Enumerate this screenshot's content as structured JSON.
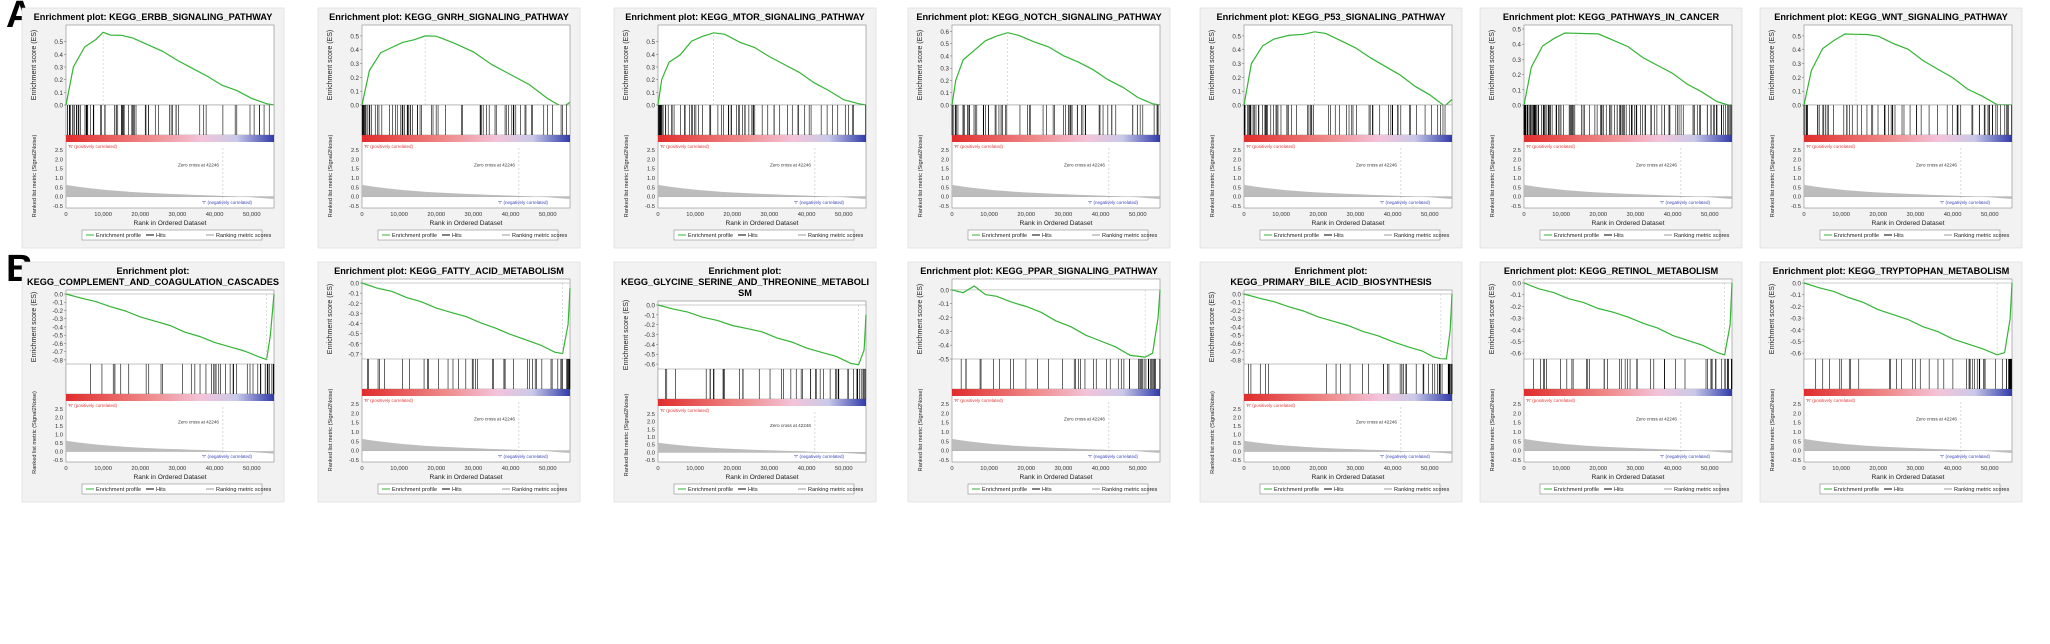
{
  "panel_labels": [
    "A",
    "B"
  ],
  "common": {
    "es_ylabel": "Enrichment score (ES)",
    "metric_ylabel": "Ranked list metric (Signal2Noise)",
    "xlabel": "Rank in Ordered Dataset",
    "pos_label": "'R' (positively correlated)",
    "neg_label": "'T' (negatively correlated)",
    "zero_cross": "Zero cross at 42246",
    "legend": [
      "Enrichment profile",
      "Hits",
      "Ranking metric scores"
    ],
    "x_ticks": [
      "0",
      "10,000",
      "20,000",
      "30,000",
      "40,000",
      "50,000"
    ],
    "metric_ticks": [
      "2.5",
      "2.0",
      "1.5",
      "1.0",
      "0.5",
      "0.0",
      "-0.5"
    ],
    "colors": {
      "es_line": "#33b533",
      "hits": "#000000",
      "metric_fill": "#bdbdbd",
      "pos": "#e23b3b",
      "neg": "#3b46b8"
    }
  },
  "chart_data": [
    {
      "type": "line",
      "title": "Enrichment plot: KEGG_ERBB_SIGNALING_PATHWAY",
      "direction": "positive",
      "xlim": [
        0,
        56000
      ],
      "ylim": [
        0,
        0.6
      ],
      "y_ticks": [
        "0.5",
        "0.4",
        "0.3",
        "0.2",
        "0.1",
        "0.0"
      ],
      "x": [
        0,
        2000,
        5000,
        8000,
        10000,
        12000,
        15000,
        18000,
        22000,
        26000,
        30000,
        34000,
        38000,
        42000,
        46000,
        50000,
        54000,
        56000
      ],
      "y": [
        0,
        0.3,
        0.45,
        0.52,
        0.57,
        0.56,
        0.55,
        0.52,
        0.48,
        0.42,
        0.36,
        0.29,
        0.22,
        0.16,
        0.11,
        0.06,
        0.01,
        0
      ]
    },
    {
      "type": "line",
      "title": "Enrichment plot: KEGG_GNRH_SIGNALING_PATHWAY",
      "direction": "positive",
      "xlim": [
        0,
        56000
      ],
      "ylim": [
        0,
        0.55
      ],
      "y_ticks": [
        "0.5",
        "0.4",
        "0.3",
        "0.2",
        "0.1",
        "0.0"
      ],
      "x": [
        0,
        2000,
        5000,
        8000,
        11000,
        14000,
        17000,
        20000,
        25000,
        30000,
        35000,
        40000,
        45000,
        50000,
        54000,
        56000
      ],
      "y": [
        0,
        0.25,
        0.37,
        0.42,
        0.45,
        0.48,
        0.5,
        0.49,
        0.45,
        0.38,
        0.3,
        0.22,
        0.14,
        0.05,
        -0.02,
        0.02
      ],
      "yneg": true
    },
    {
      "type": "line",
      "title": "Enrichment plot: KEGG_MTOR_SIGNALING_PATHWAY",
      "direction": "positive",
      "xlim": [
        0,
        56000
      ],
      "ylim": [
        0,
        0.6
      ],
      "y_ticks": [
        "0.5",
        "0.4",
        "0.3",
        "0.2",
        "0.1",
        "0.0"
      ],
      "x": [
        0,
        1000,
        3000,
        6000,
        9000,
        12000,
        15000,
        18000,
        22000,
        26000,
        30000,
        34000,
        38000,
        42000,
        46000,
        50000,
        54000,
        56000
      ],
      "y": [
        0,
        0.2,
        0.33,
        0.4,
        0.5,
        0.55,
        0.57,
        0.55,
        0.5,
        0.45,
        0.39,
        0.32,
        0.25,
        0.18,
        0.11,
        0.05,
        0.01,
        0
      ]
    },
    {
      "type": "line",
      "title": "Enrichment plot: KEGG_NOTCH_SIGNALING_PATHWAY",
      "direction": "positive",
      "xlim": [
        0,
        56000
      ],
      "ylim": [
        0,
        0.62
      ],
      "y_ticks": [
        "0.6",
        "0.5",
        "0.4",
        "0.3",
        "0.2",
        "0.1",
        "0.0"
      ],
      "x": [
        0,
        1000,
        3000,
        6000,
        9000,
        12000,
        15000,
        18000,
        22000,
        26000,
        30000,
        34000,
        38000,
        42000,
        46000,
        50000,
        54000,
        56000
      ],
      "y": [
        0,
        0.2,
        0.36,
        0.45,
        0.52,
        0.57,
        0.59,
        0.56,
        0.52,
        0.47,
        0.41,
        0.35,
        0.28,
        0.21,
        0.14,
        0.07,
        0.01,
        0
      ]
    },
    {
      "type": "line",
      "title": "Enrichment plot: KEGG_P53_SIGNALING_PATHWAY",
      "direction": "positive",
      "xlim": [
        0,
        56000
      ],
      "ylim": [
        0,
        0.55
      ],
      "y_ticks": [
        "0.5",
        "0.4",
        "0.3",
        "0.2",
        "0.1",
        "0.0"
      ],
      "x": [
        0,
        2000,
        5000,
        8000,
        12000,
        16000,
        19000,
        22000,
        26000,
        30000,
        34000,
        38000,
        42000,
        46000,
        50000,
        54000,
        56000
      ],
      "y": [
        0,
        0.3,
        0.42,
        0.48,
        0.5,
        0.52,
        0.53,
        0.51,
        0.47,
        0.41,
        0.35,
        0.28,
        0.21,
        0.14,
        0.07,
        0.0,
        0.04
      ]
    },
    {
      "type": "line",
      "title": "Enrichment plot: KEGG_PATHWAYS_IN_CANCER",
      "direction": "positive",
      "xlim": [
        0,
        56000
      ],
      "ylim": [
        0,
        0.5
      ],
      "y_ticks": [
        "0.5",
        "0.4",
        "0.3",
        "0.2",
        "0.1",
        "0.0"
      ],
      "x": [
        0,
        2000,
        5000,
        8000,
        11000,
        14000,
        17000,
        20000,
        24000,
        28000,
        32000,
        36000,
        40000,
        44000,
        48000,
        52000,
        55000,
        56000
      ],
      "y": [
        0,
        0.25,
        0.38,
        0.44,
        0.47,
        0.48,
        0.47,
        0.46,
        0.43,
        0.38,
        0.32,
        0.26,
        0.2,
        0.14,
        0.08,
        0.03,
        0.0,
        0
      ]
    },
    {
      "type": "line",
      "title": "Enrichment plot: KEGG_WNT_SIGNALING_PATHWAY",
      "direction": "positive",
      "xlim": [
        0,
        56000
      ],
      "ylim": [
        0,
        0.55
      ],
      "y_ticks": [
        "0.5",
        "0.4",
        "0.3",
        "0.2",
        "0.1",
        "0.0"
      ],
      "x": [
        0,
        2000,
        5000,
        8000,
        11000,
        14000,
        17000,
        20000,
        24000,
        28000,
        32000,
        36000,
        40000,
        44000,
        48000,
        52000,
        56000
      ],
      "y": [
        0,
        0.25,
        0.4,
        0.47,
        0.51,
        0.52,
        0.51,
        0.49,
        0.45,
        0.4,
        0.33,
        0.26,
        0.19,
        0.12,
        0.06,
        0.01,
        0
      ]
    },
    {
      "type": "line",
      "title": "Enrichment plot:\nKEGG_COMPLEMENT_AND_COAGULATION_CASCADES",
      "direction": "negative",
      "xlim": [
        0,
        56000
      ],
      "ylim": [
        -0.85,
        0
      ],
      "y_ticks": [
        "0.0",
        "-0.1",
        "-0.2",
        "-0.3",
        "-0.4",
        "-0.5",
        "-0.6",
        "-0.7",
        "-0.8"
      ],
      "x": [
        0,
        4000,
        8000,
        12000,
        16000,
        20000,
        24000,
        28000,
        32000,
        36000,
        40000,
        44000,
        48000,
        52000,
        54000,
        55000,
        56000
      ],
      "y": [
        0,
        -0.05,
        -0.1,
        -0.15,
        -0.21,
        -0.27,
        -0.33,
        -0.39,
        -0.46,
        -0.52,
        -0.58,
        -0.64,
        -0.7,
        -0.76,
        -0.8,
        -0.5,
        0
      ]
    },
    {
      "type": "line",
      "title": "Enrichment plot: KEGG_FATTY_ACID_METABOLISM",
      "direction": "negative",
      "xlim": [
        0,
        56000
      ],
      "ylim": [
        -0.75,
        0
      ],
      "y_ticks": [
        "0.0",
        "-0.1",
        "-0.2",
        "-0.3",
        "-0.4",
        "-0.5",
        "-0.6",
        "-0.7"
      ],
      "x": [
        0,
        4000,
        8000,
        12000,
        16000,
        20000,
        24000,
        28000,
        32000,
        36000,
        40000,
        44000,
        48000,
        52000,
        54000,
        55500,
        56000
      ],
      "y": [
        0,
        -0.05,
        -0.09,
        -0.14,
        -0.19,
        -0.24,
        -0.29,
        -0.34,
        -0.39,
        -0.45,
        -0.5,
        -0.56,
        -0.62,
        -0.68,
        -0.7,
        -0.4,
        -0.05
      ]
    },
    {
      "type": "line",
      "title": "Enrichment plot:\nKEGG_GLYCINE_SERINE_AND_THREONINE_METABOLI\nSM",
      "direction": "negative",
      "xlim": [
        0,
        56000
      ],
      "ylim": [
        -0.65,
        0
      ],
      "y_ticks": [
        "0.0",
        "-0.1",
        "-0.2",
        "-0.3",
        "-0.4",
        "-0.5",
        "-0.6"
      ],
      "x": [
        0,
        4000,
        8000,
        12000,
        16000,
        20000,
        24000,
        28000,
        32000,
        36000,
        40000,
        44000,
        48000,
        52000,
        54000,
        55500,
        56000
      ],
      "y": [
        0,
        -0.04,
        -0.08,
        -0.12,
        -0.16,
        -0.2,
        -0.24,
        -0.28,
        -0.33,
        -0.38,
        -0.43,
        -0.48,
        -0.53,
        -0.59,
        -0.61,
        -0.45,
        -0.1
      ]
    },
    {
      "type": "line",
      "title": "Enrichment plot: KEGG_PPAR_SIGNALING_PATHWAY",
      "direction": "negative",
      "xlim": [
        0,
        56000
      ],
      "ylim": [
        -0.5,
        0.05
      ],
      "y_ticks": [
        "0.0",
        "-0.1",
        "-0.2",
        "-0.3",
        "-0.4",
        "-0.5"
      ],
      "x": [
        0,
        3000,
        6000,
        9000,
        12000,
        16000,
        20000,
        24000,
        28000,
        32000,
        36000,
        40000,
        44000,
        48000,
        52000,
        54000,
        55500,
        56000
      ],
      "y": [
        0,
        -0.02,
        0.02,
        -0.03,
        -0.05,
        -0.08,
        -0.12,
        -0.17,
        -0.22,
        -0.27,
        -0.32,
        -0.37,
        -0.42,
        -0.47,
        -0.49,
        -0.45,
        -0.2,
        0
      ]
    },
    {
      "type": "line",
      "title": "Enrichment plot:\nKEGG_PRIMARY_BILE_ACID_BIOSYNTHESIS",
      "direction": "negative",
      "xlim": [
        0,
        56000
      ],
      "ylim": [
        -0.85,
        0
      ],
      "y_ticks": [
        "0.0",
        "-0.1",
        "-0.2",
        "-0.3",
        "-0.4",
        "-0.5",
        "-0.6",
        "-0.7",
        "-0.8"
      ],
      "x": [
        0,
        4000,
        8000,
        12000,
        16000,
        20000,
        24000,
        28000,
        32000,
        36000,
        40000,
        44000,
        48000,
        51000,
        53000,
        54500,
        55500,
        56000
      ],
      "y": [
        0,
        -0.05,
        -0.1,
        -0.15,
        -0.21,
        -0.27,
        -0.33,
        -0.39,
        -0.45,
        -0.51,
        -0.57,
        -0.64,
        -0.7,
        -0.76,
        -0.79,
        -0.78,
        -0.45,
        0
      ]
    },
    {
      "type": "line",
      "title": "Enrichment plot: KEGG_RETINOL_METABOLISM",
      "direction": "negative",
      "xlim": [
        0,
        56000
      ],
      "ylim": [
        -0.65,
        0
      ],
      "y_ticks": [
        "0.0",
        "-0.1",
        "-0.2",
        "-0.3",
        "-0.4",
        "-0.5",
        "-0.6"
      ],
      "x": [
        0,
        4000,
        8000,
        12000,
        16000,
        20000,
        24000,
        28000,
        32000,
        36000,
        40000,
        44000,
        48000,
        52000,
        54000,
        55500,
        56000
      ],
      "y": [
        0,
        -0.05,
        -0.09,
        -0.13,
        -0.17,
        -0.21,
        -0.25,
        -0.3,
        -0.34,
        -0.39,
        -0.44,
        -0.49,
        -0.54,
        -0.59,
        -0.62,
        -0.35,
        0
      ]
    },
    {
      "type": "line",
      "title": "Enrichment plot: KEGG_TRYPTOPHAN_METABOLISM",
      "direction": "negative",
      "xlim": [
        0,
        56000
      ],
      "ylim": [
        -0.65,
        0
      ],
      "y_ticks": [
        "0.0",
        "-0.1",
        "-0.2",
        "-0.3",
        "-0.4",
        "-0.5",
        "-0.6"
      ],
      "x": [
        0,
        4000,
        8000,
        12000,
        16000,
        20000,
        24000,
        28000,
        32000,
        36000,
        40000,
        44000,
        48000,
        52000,
        54000,
        55500,
        56000
      ],
      "y": [
        0,
        -0.04,
        -0.08,
        -0.12,
        -0.17,
        -0.22,
        -0.27,
        -0.32,
        -0.37,
        -0.42,
        -0.47,
        -0.52,
        -0.57,
        -0.61,
        -0.6,
        -0.3,
        0
      ]
    }
  ]
}
